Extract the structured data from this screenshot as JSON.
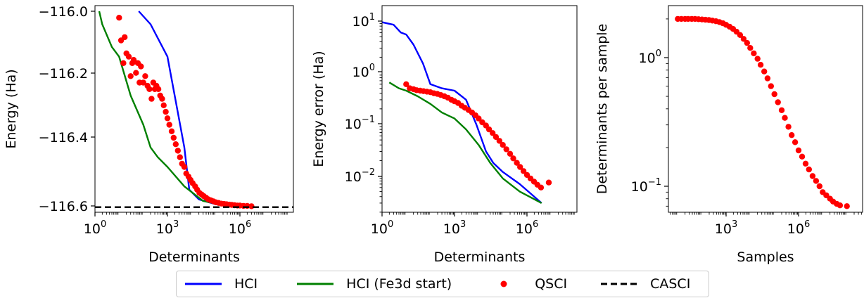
{
  "chart_data": [
    {
      "type": "line",
      "xlabel": "Determinants",
      "ylabel": "Energy (Ha)",
      "xscale": "log",
      "xlim": [
        1,
        100000000
      ],
      "ylim": [
        -116.625,
        -116.0
      ],
      "x_tick_labels": [
        "10^0",
        "10^3",
        "10^6"
      ],
      "y_tick_labels": [
        "−116.0",
        "−116.2",
        "−116.4",
        "−116.6"
      ],
      "series": [
        {
          "name": "HCI",
          "color": "#0000ff",
          "style": "line",
          "x": [
            65,
            200,
            1000,
            5000,
            8000,
            20000,
            100000,
            1000000,
            3000000
          ],
          "y": [
            -116.0,
            -116.04,
            -116.14,
            -116.42,
            -116.55,
            -116.58,
            -116.595,
            -116.6,
            -116.602
          ]
        },
        {
          "name": "HCI (Fe3d start)",
          "color": "#008000",
          "style": "line",
          "x": [
            1.5,
            2,
            5,
            10,
            30,
            100,
            200,
            400,
            1000,
            5000,
            30000,
            300000,
            1000000
          ],
          "y": [
            -116.0,
            -116.04,
            -116.11,
            -116.14,
            -116.26,
            -116.35,
            -116.42,
            -116.45,
            -116.48,
            -116.54,
            -116.585,
            -116.6,
            -116.603
          ]
        },
        {
          "name": "QSCI",
          "color": "#ff0000",
          "style": "scatter",
          "x": [
            10,
            12,
            15,
            17,
            20,
            25,
            30,
            35,
            40,
            50,
            60,
            70,
            80,
            100,
            120,
            150,
            180,
            220,
            260,
            300,
            350,
            420,
            500,
            600,
            700,
            850,
            1000,
            1200,
            1500,
            1800,
            2200,
            2700,
            3300,
            4000,
            5000,
            6000,
            7500,
            9000,
            11000,
            14000,
            17000,
            21000,
            26000,
            32000,
            40000,
            50000,
            63000,
            80000,
            100000,
            130000,
            170000,
            220000,
            280000,
            360000,
            460000,
            600000,
            780000,
            1000000,
            1400000,
            2000000,
            3000000
          ],
          "y": [
            -116.02,
            -116.09,
            -116.16,
            -116.08,
            -116.13,
            -116.14,
            -116.2,
            -116.16,
            -116.15,
            -116.19,
            -116.16,
            -116.22,
            -116.17,
            -116.22,
            -116.2,
            -116.23,
            -116.24,
            -116.27,
            -116.22,
            -116.24,
            -116.23,
            -116.24,
            -116.26,
            -116.27,
            -116.29,
            -116.31,
            -116.33,
            -116.35,
            -116.37,
            -116.39,
            -116.41,
            -116.43,
            -116.45,
            -116.47,
            -116.48,
            -116.5,
            -116.51,
            -116.52,
            -116.53,
            -116.54,
            -116.55,
            -116.56,
            -116.565,
            -116.57,
            -116.575,
            -116.58,
            -116.583,
            -116.586,
            -116.589,
            -116.591,
            -116.593,
            -116.594,
            -116.595,
            -116.596,
            -116.597,
            -116.598,
            -116.599,
            -116.599,
            -116.6,
            -116.6,
            -116.601
          ]
        },
        {
          "name": "CASCI",
          "color": "#000000",
          "style": "dashed-hline",
          "y": [
            -116.604
          ]
        }
      ]
    },
    {
      "type": "line",
      "xlabel": "Determinants",
      "ylabel": "Energy error (Ha)",
      "xscale": "log",
      "yscale": "log",
      "xlim": [
        1,
        1000000000
      ],
      "ylim": [
        0.0017,
        15
      ],
      "x_tick_labels": [
        "10^0",
        "10^3",
        "10^6"
      ],
      "y_tick_labels": [
        "10^1",
        "10^0",
        "10^-1",
        "10^-2"
      ],
      "series": [
        {
          "name": "HCI",
          "color": "#0000ff",
          "style": "line",
          "x": [
            1,
            3,
            6,
            10,
            20,
            50,
            100,
            300,
            1000,
            3000,
            8000,
            20000,
            40000,
            100000,
            500000,
            4000000
          ],
          "y": [
            9.5,
            8.5,
            6.0,
            5.5,
            3.5,
            1.5,
            0.6,
            0.5,
            0.45,
            0.3,
            0.1,
            0.03,
            0.018,
            0.012,
            0.007,
            0.003
          ]
        },
        {
          "name": "HCI (Fe3d start)",
          "color": "#008000",
          "style": "line",
          "x": [
            2,
            5,
            10,
            30,
            100,
            300,
            1000,
            3000,
            10000,
            30000,
            100000,
            500000,
            4000000
          ],
          "y": [
            0.65,
            0.5,
            0.45,
            0.35,
            0.25,
            0.17,
            0.13,
            0.08,
            0.04,
            0.018,
            0.009,
            0.005,
            0.003
          ]
        },
        {
          "name": "QSCI",
          "color": "#ff0000",
          "style": "scatter",
          "x": [
            10,
            14,
            20,
            27,
            38,
            52,
            72,
            100,
            140,
            195,
            270,
            380,
            530,
            740,
            1000,
            1400,
            1950,
            2700,
            3800,
            5300,
            7400,
            10000,
            14000,
            20000,
            27000,
            38000,
            52000,
            72000,
            100000,
            140000,
            200000,
            270000,
            380000,
            520000,
            720000,
            1000000,
            1400000,
            1950000,
            2700000,
            3800000,
            8000000
          ],
          "y": [
            0.6,
            0.5,
            0.48,
            0.46,
            0.45,
            0.44,
            0.43,
            0.42,
            0.4,
            0.39,
            0.37,
            0.35,
            0.33,
            0.3,
            0.28,
            0.26,
            0.23,
            0.21,
            0.19,
            0.17,
            0.15,
            0.13,
            0.11,
            0.095,
            0.08,
            0.068,
            0.057,
            0.048,
            0.04,
            0.033,
            0.027,
            0.022,
            0.018,
            0.015,
            0.0125,
            0.0105,
            0.009,
            0.0078,
            0.0068,
            0.006,
            0.0075
          ]
        }
      ]
    },
    {
      "type": "scatter",
      "xlabel": "Samples",
      "ylabel": "Determinants per sample",
      "xscale": "log",
      "yscale": "log",
      "xlim": [
        3,
        300000000
      ],
      "ylim": [
        0.06,
        2.5
      ],
      "x_tick_labels": [
        "10^3",
        "10^6"
      ],
      "y_tick_labels": [
        "10^0",
        "10^-1"
      ],
      "series": [
        {
          "name": "QSCI",
          "color": "#ff0000",
          "style": "scatter",
          "x": [
            10,
            14,
            20,
            27,
            38,
            52,
            72,
            100,
            140,
            195,
            270,
            380,
            530,
            740,
            1000,
            1400,
            1950,
            2700,
            3800,
            5300,
            7400,
            10000,
            14000,
            20000,
            27000,
            38000,
            52000,
            72000,
            100000,
            140000,
            200000,
            270000,
            380000,
            520000,
            720000,
            1000000,
            1400000,
            1950000,
            2700000,
            3800000,
            5300000,
            7400000,
            10000000,
            14000000,
            20000000,
            27000000,
            38000000,
            52000000,
            100000000
          ],
          "y": [
            2.0,
            2.0,
            2.0,
            2.0,
            2.0,
            2.0,
            1.99,
            1.98,
            1.97,
            1.96,
            1.94,
            1.92,
            1.89,
            1.85,
            1.8,
            1.74,
            1.67,
            1.59,
            1.5,
            1.4,
            1.3,
            1.19,
            1.08,
            0.98,
            0.88,
            0.78,
            0.69,
            0.6,
            0.52,
            0.45,
            0.39,
            0.34,
            0.29,
            0.25,
            0.22,
            0.19,
            0.17,
            0.15,
            0.135,
            0.12,
            0.11,
            0.1,
            0.09,
            0.085,
            0.08,
            0.076,
            0.073,
            0.071,
            0.07
          ]
        }
      ]
    }
  ],
  "legend": {
    "items": [
      {
        "label": "HCI",
        "color": "#0000ff",
        "marker": "line"
      },
      {
        "label": "HCI (Fe3d start)",
        "color": "#008000",
        "marker": "line"
      },
      {
        "label": "QSCI",
        "color": "#ff0000",
        "marker": "dot"
      },
      {
        "label": "CASCI",
        "color": "#000000",
        "marker": "dashed"
      }
    ]
  }
}
